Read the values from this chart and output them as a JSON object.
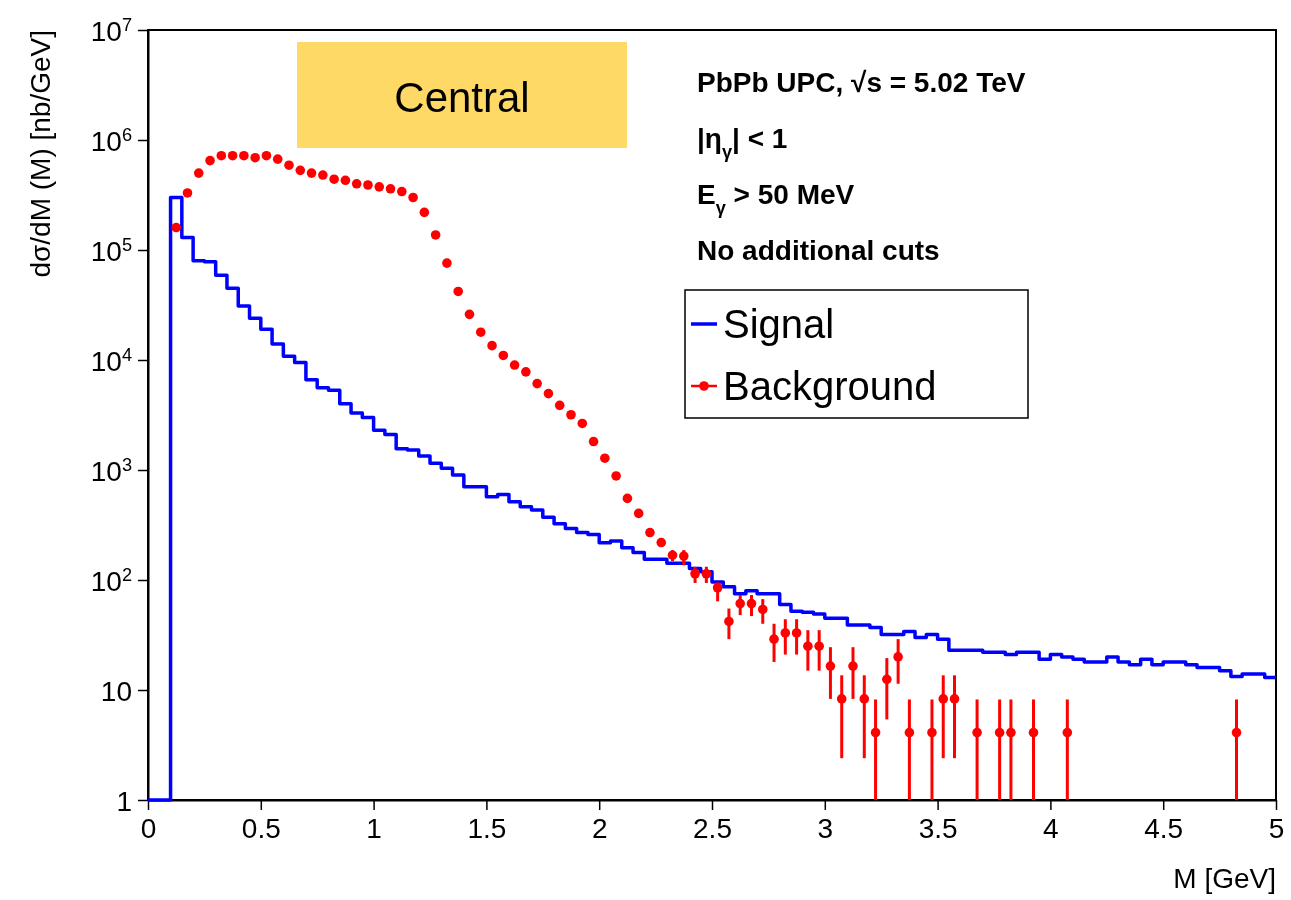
{
  "chart_data": {
    "type": "histogram",
    "xlabel": "M [GeV]",
    "ylabel": "dσ/dM (M) [nb/GeV]",
    "log": "y",
    "legend": "top right",
    "marker": "circle",
    "annotations": [
      "Central",
      "PbPb UPC,  √s = 5.02 TeV",
      "|η$_{γ}$| < 1",
      "E$_{γ}$ > 50 MeV",
      "No additional cuts"
    ],
    "xlim": [
      0,
      5
    ],
    "xticks": [
      0,
      0.5,
      1,
      1.5,
      2,
      2.5,
      3,
      3.5,
      4,
      4.5,
      5
    ],
    "ylim": [
      1,
      10000000
    ],
    "yticks": [
      1,
      10,
      {
        "value": 100,
        "label": "10$^{2}$"
      },
      {
        "value": 1000,
        "label": "10$^{3}$"
      },
      {
        "value": 10000,
        "label": "10$^{4}$"
      },
      {
        "value": 100000,
        "label": "10$^{5}$"
      },
      {
        "value": 1000000,
        "label": "10$^{6}$"
      },
      {
        "value": 10000000,
        "label": "10$^{7}$"
      }
    ],
    "bins": [
      0,
      0.05,
      0.1,
      0.15,
      0.2,
      0.25,
      0.3,
      0.35,
      0.4,
      0.45,
      0.5,
      0.55,
      0.6,
      0.65,
      0.7,
      0.75,
      0.8,
      0.85,
      0.9,
      0.95,
      1,
      1.05,
      1.1,
      1.15,
      1.2,
      1.25,
      1.3,
      1.35,
      1.4,
      1.45,
      1.5,
      1.55,
      1.6,
      1.65,
      1.7,
      1.75,
      1.8,
      1.85,
      1.9,
      1.95,
      2,
      2.05,
      2.1,
      2.15,
      2.2,
      2.25,
      2.3,
      2.35,
      2.4,
      2.45,
      2.5,
      2.55,
      2.6,
      2.65,
      2.7,
      2.75,
      2.8,
      2.85,
      2.9,
      2.95,
      3,
      3.05,
      3.1,
      3.15,
      3.2,
      3.25,
      3.3,
      3.35,
      3.4,
      3.45,
      3.5,
      3.55,
      3.6,
      3.65,
      3.7,
      3.75,
      3.8,
      3.85,
      3.9,
      3.95,
      4,
      4.05,
      4.1,
      4.15,
      4.2,
      4.25,
      4.3,
      4.35,
      4.4,
      4.45,
      4.5,
      4.55,
      4.6,
      4.65,
      4.7,
      4.75,
      4.8,
      4.85,
      4.9,
      4.95,
      5
    ],
    "series": [
      {
        "name": "Signal",
        "color": "#0000ff",
        "values": [
          1,
          1,
          300000,
          130000,
          80000,
          78000,
          59000,
          45000,
          31000,
          24000,
          19000,
          14000,
          10800,
          9500,
          6600,
          5600,
          5300,
          4000,
          3300,
          3000,
          2300,
          2100,
          1560,
          1520,
          1340,
          1150,
          1040,
          900,
          705,
          705,
          571,
          600,
          515,
          464,
          432,
          372,
          324,
          294,
          270,
          259,
          218,
          226,
          196,
          178,
          154,
          154,
          142,
          142,
          127,
          119,
          96,
          87,
          75,
          80,
          75,
          75,
          60,
          52,
          51,
          49,
          45,
          45,
          39,
          39,
          37,
          32,
          32,
          34,
          30,
          32,
          29,
          23,
          23,
          23,
          22,
          22,
          21,
          22,
          22,
          19,
          21,
          20,
          19,
          18,
          18,
          20,
          18,
          17,
          19,
          17,
          18,
          18,
          17,
          16,
          16,
          15,
          13.3,
          14,
          14,
          13
        ]
      },
      {
        "name": "Background",
        "type": "scatter",
        "color": "#ff0000",
        "x": [
          0.125,
          0.175,
          0.225,
          0.275,
          0.325,
          0.375,
          0.425,
          0.475,
          0.525,
          0.575,
          0.625,
          0.675,
          0.725,
          0.775,
          0.825,
          0.875,
          0.925,
          0.975,
          1.025,
          1.075,
          1.125,
          1.175,
          1.225,
          1.275,
          1.325,
          1.375,
          1.425,
          1.475,
          1.525,
          1.575,
          1.625,
          1.675,
          1.725,
          1.775,
          1.825,
          1.875,
          1.925,
          1.975,
          2.025,
          2.075,
          2.125,
          2.175,
          2.225,
          2.275,
          2.325,
          2.375,
          2.425,
          2.475,
          2.525,
          2.575,
          2.625,
          2.675,
          2.725,
          2.775,
          2.825,
          2.875,
          2.925,
          2.975,
          3.025,
          3.075,
          3.125,
          3.175,
          3.225,
          3.275,
          3.325,
          3.375,
          3.475,
          3.525,
          3.575,
          3.675,
          3.775,
          3.825,
          3.925,
          4.075,
          4.825
        ],
        "values": [
          160000,
          330000,
          500000,
          650000,
          720000,
          720000,
          720000,
          690000,
          720000,
          670000,
          590000,
          530000,
          500000,
          480000,
          440000,
          430000,
          400000,
          390000,
          375000,
          360000,
          340000,
          300000,
          220000,
          137000,
          76000,
          42000,
          26000,
          17900,
          13500,
          11000,
          9000,
          7800,
          6100,
          4950,
          3870,
          3180,
          2650,
          1815,
          1280,
          883,
          552,
          403,
          270,
          219,
          168,
          165,
          114,
          114,
          85,
          42,
          61,
          61,
          54,
          29,
          33,
          33,
          25,
          25,
          16.5,
          8.3,
          16.5,
          8.3,
          4.1,
          12.5,
          20,
          4.1,
          4.1,
          8.3,
          8.3,
          4.1,
          4.1,
          4.1,
          4.1,
          4.1,
          4.1
        ],
        "errors": [
          null,
          null,
          null,
          null,
          null,
          null,
          null,
          null,
          null,
          null,
          null,
          null,
          null,
          null,
          null,
          null,
          null,
          null,
          null,
          null,
          null,
          null,
          null,
          null,
          null,
          null,
          null,
          null,
          null,
          null,
          null,
          null,
          null,
          null,
          null,
          null,
          null,
          null,
          null,
          null,
          null,
          null,
          null,
          null,
          [
            148,
            187
          ],
          [
            136,
            187
          ],
          [
            94,
            132
          ],
          [
            94,
            132
          ],
          [
            64,
            95
          ],
          [
            29,
            55
          ],
          [
            48,
            73
          ],
          [
            47,
            73
          ],
          [
            40,
            67
          ],
          [
            18,
            40
          ],
          [
            21,
            44
          ],
          [
            21,
            44
          ],
          [
            15,
            35
          ],
          [
            15,
            35
          ],
          [
            8.3,
            24.5
          ],
          [
            2.4,
            13.6
          ],
          [
            8.3,
            24.5
          ],
          [
            2.4,
            13.6
          ],
          [
            1,
            8.2
          ],
          [
            5.4,
            19.5
          ],
          [
            11.4,
            29
          ],
          [
            1,
            8.2
          ],
          [
            1,
            8.2
          ],
          [
            2.4,
            13.6
          ],
          [
            2.4,
            13.6
          ],
          [
            1,
            8.2
          ],
          [
            1,
            8.2
          ],
          [
            1,
            8.2
          ],
          [
            1,
            8.2
          ],
          [
            1,
            8.2
          ],
          [
            1,
            8.2
          ]
        ]
      }
    ]
  }
}
